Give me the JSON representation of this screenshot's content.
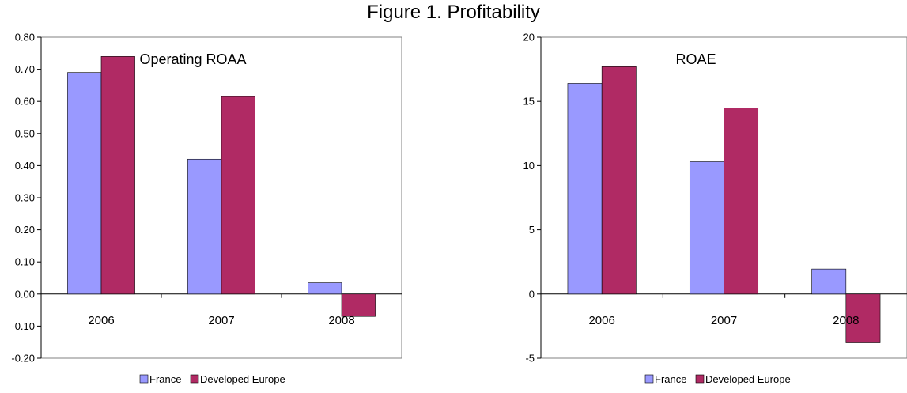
{
  "figure_title": "Figure 1. Profitability",
  "colors": {
    "france": "#9999ff",
    "developed_europe": "#b02a64",
    "axis": "#000000",
    "plot_border": "#808080"
  },
  "chart_data": [
    {
      "type": "bar",
      "title": "Operating ROAA",
      "categories": [
        "2006",
        "2007",
        "2008"
      ],
      "series": [
        {
          "name": "France",
          "values": [
            0.69,
            0.42,
            0.035
          ]
        },
        {
          "name": "Developed Europe",
          "values": [
            0.74,
            0.615,
            -0.07
          ]
        }
      ],
      "ylim": [
        -0.2,
        0.8
      ],
      "yticks": [
        0.8,
        0.7,
        0.6,
        0.5,
        0.4,
        0.3,
        0.2,
        0.1,
        0.0,
        -0.1,
        -0.2
      ],
      "ytick_labels": [
        "0.80",
        "0.70",
        "0.60",
        "0.50",
        "0.40",
        "0.30",
        "0.20",
        "0.10",
        "0.00",
        "-0.10",
        "-0.20"
      ],
      "legend": "bottom",
      "grid": false
    },
    {
      "type": "bar",
      "title": "ROAE",
      "categories": [
        "2006",
        "2007",
        "2008"
      ],
      "series": [
        {
          "name": "France",
          "values": [
            16.4,
            10.3,
            1.95
          ]
        },
        {
          "name": "Developed Europe",
          "values": [
            17.7,
            14.5,
            -3.8
          ]
        }
      ],
      "ylim": [
        -5,
        20
      ],
      "yticks": [
        20,
        15,
        10,
        5,
        0,
        -5
      ],
      "ytick_labels": [
        "20",
        "15",
        "10",
        "5",
        "0",
        "-5"
      ],
      "legend": "bottom",
      "grid": false
    }
  ]
}
